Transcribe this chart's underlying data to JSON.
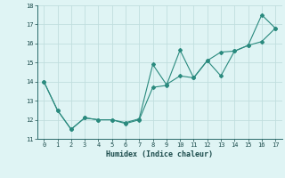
{
  "x": [
    0,
    1,
    2,
    3,
    4,
    5,
    6,
    7,
    8,
    9,
    10,
    11,
    12,
    13,
    14,
    15,
    16,
    17
  ],
  "y_jagged": [
    14.0,
    12.5,
    11.5,
    12.1,
    12.0,
    12.0,
    11.8,
    12.0,
    13.7,
    13.8,
    15.65,
    14.2,
    15.1,
    14.3,
    15.6,
    15.9,
    17.5,
    16.8
  ],
  "y_trend": [
    14.0,
    12.5,
    11.5,
    12.1,
    12.0,
    12.0,
    11.85,
    12.05,
    14.9,
    13.85,
    14.3,
    14.2,
    15.1,
    15.55,
    15.6,
    15.9,
    16.1,
    16.8
  ],
  "line_color": "#2a8a7e",
  "bg_color": "#dff4f4",
  "grid_color": "#c0dede",
  "xlabel": "Humidex (Indice chaleur)",
  "ylim": [
    11,
    18
  ],
  "xlim": [
    -0.5,
    17.5
  ],
  "yticks": [
    11,
    12,
    13,
    14,
    15,
    16,
    17,
    18
  ],
  "xticks": [
    0,
    1,
    2,
    3,
    4,
    5,
    6,
    7,
    8,
    9,
    10,
    11,
    12,
    13,
    14,
    15,
    16,
    17
  ]
}
